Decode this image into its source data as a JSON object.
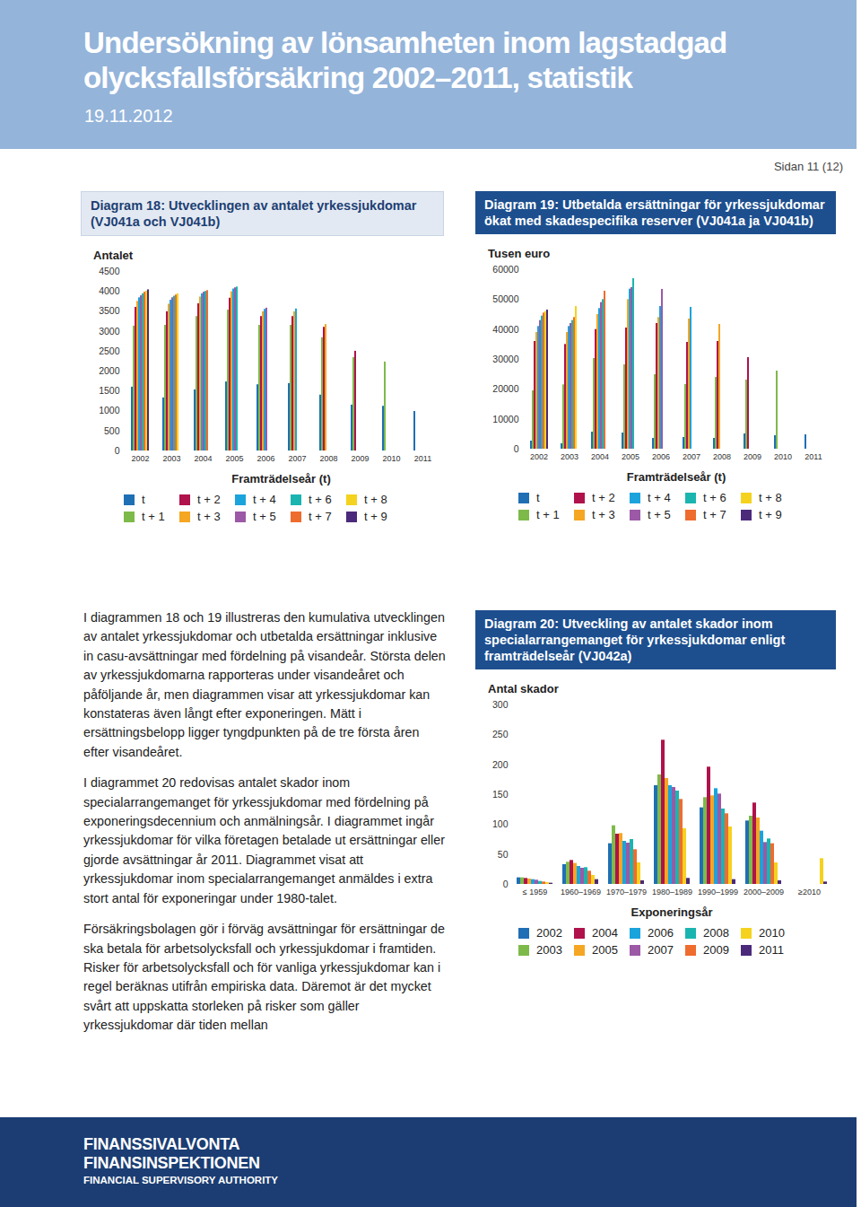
{
  "header": {
    "title": [
      "Undersökning av lönsamheten inom lagstadgad",
      "olycksfallsförsäkring 2002–2011, statistik"
    ],
    "date": "19.11.2012"
  },
  "page_number": "Sidan 11 (12)",
  "text": {
    "paragraphs": [
      "I diagrammen 18 och 19 illustreras den kumulativa utvecklingen av antalet yrkessjukdomar och utbetalda ersättningar inklusive in casu-avsättningar med fördelning på visandeår. Största delen av yrkessjukdomarna rapporteras under visandeåret och påföljande år, men diagrammen visar att yrkessjukdomar kan konstateras även långt efter exponeringen. Mätt i ersättningsbelopp ligger tyngdpunkten på de tre första åren efter visandeåret.",
      "I diagrammet 20 redovisas antalet skador inom specialarrangemanget för yrkessjukdomar med fördelning på exponeringsdecennium och anmälningsår. I diagrammet ingår yrkessjukdomar för vilka företagen betalade ut ersättningar eller gjorde avsättningar år 2011. Diagrammet visat att yrkessjukdomar inom specialarrangemanget anmäldes i extra stort antal för exponeringar under 1980-talet.",
      "Försäkringsbolagen gör i förväg avsättningar för ersättningar de ska betala för arbetsolycksfall och yrkessjukdomar i framtiden. Risker för arbetsolycksfall och för vanliga yrkessjukdomar kan i regel beräknas utifrån empiriska data. Däremot är det mycket svårt att uppskatta storleken på risker som gäller yrkessjukdomar där tiden mellan"
    ]
  },
  "footer": {
    "logo": [
      "FINANSSIVALVONTA",
      "FINANSINSPEKTIONEN",
      "FINANCIAL SUPERVISORY AUTHORITY"
    ]
  },
  "chart_data": [
    {
      "type": "bar",
      "title": "Diagram 18: Utvecklingen av antalet yrkessjukdomar (VJ041a och VJ041b)",
      "y_label": "Antalet",
      "x_label": "Framträdelseår (t)",
      "categories": [
        "2002",
        "2003",
        "2004",
        "2005",
        "2006",
        "2007",
        "2008",
        "2009",
        "2010",
        "2011"
      ],
      "series": [
        {
          "name": "t",
          "color": "#1f6fb5",
          "values": [
            1600,
            1330,
            1530,
            1730,
            1660,
            1690,
            1400,
            1150,
            1120,
            990
          ]
        },
        {
          "name": "t + 1",
          "color": "#7dba4a",
          "values": [
            3130,
            3150,
            3370,
            3530,
            3150,
            3150,
            2840,
            2340,
            2230,
            null
          ]
        },
        {
          "name": "t + 2",
          "color": "#b0124b",
          "values": [
            3600,
            3490,
            3690,
            3830,
            3370,
            3370,
            3100,
            2500,
            null,
            null
          ]
        },
        {
          "name": "t + 3",
          "color": "#f5a623",
          "values": [
            3750,
            3680,
            3860,
            3990,
            3490,
            3490,
            3170,
            null,
            null,
            null
          ]
        },
        {
          "name": "t + 4",
          "color": "#1ba3dc",
          "values": [
            3840,
            3780,
            3940,
            4060,
            3550,
            3560,
            null,
            null,
            null,
            null
          ]
        },
        {
          "name": "t + 5",
          "color": "#9b59a6",
          "values": [
            3890,
            3840,
            3980,
            4090,
            3580,
            null,
            null,
            null,
            null,
            null
          ]
        },
        {
          "name": "t + 6",
          "color": "#1bb5b0",
          "values": [
            3940,
            3880,
            4000,
            4110,
            null,
            null,
            null,
            null,
            null,
            null
          ]
        },
        {
          "name": "t + 7",
          "color": "#ef6c2f",
          "values": [
            3980,
            3910,
            4020,
            null,
            null,
            null,
            null,
            null,
            null,
            null
          ]
        },
        {
          "name": "t + 8",
          "color": "#f5d21e",
          "values": [
            4010,
            3940,
            null,
            null,
            null,
            null,
            null,
            null,
            null,
            null
          ]
        },
        {
          "name": "t + 9",
          "color": "#4b2a7b",
          "values": [
            4040,
            null,
            null,
            null,
            null,
            null,
            null,
            null,
            null,
            null
          ]
        }
      ],
      "ylim": [
        0,
        4500
      ],
      "yticks": [
        0,
        500,
        1000,
        1500,
        2000,
        2500,
        3000,
        3500,
        4000,
        4500
      ],
      "grid": false,
      "legend": "bottom"
    },
    {
      "type": "bar",
      "title": "Diagram 19: Utbetalda ersättningar för yrkessjukdomar ökat med skadespecifika reserver (VJ041a ja VJ041b)",
      "y_label": "Tusen euro",
      "x_label": "Framträdelseår (t)",
      "categories": [
        "2002",
        "2003",
        "2004",
        "2005",
        "2006",
        "2007",
        "2008",
        "2009",
        "2010",
        "2011"
      ],
      "series": [
        {
          "name": "t",
          "color": "#1f6fb5",
          "values": [
            2700,
            1800,
            5700,
            5400,
            3600,
            3900,
            3600,
            5100,
            4500,
            4800
          ]
        },
        {
          "name": "t + 1",
          "color": "#7dba4a",
          "values": [
            19500,
            21500,
            30300,
            28200,
            24900,
            21600,
            24000,
            23100,
            26100,
            null
          ]
        },
        {
          "name": "t + 2",
          "color": "#b0124b",
          "values": [
            36000,
            35000,
            40000,
            40500,
            42000,
            35700,
            36000,
            30600,
            null,
            null
          ]
        },
        {
          "name": "t + 3",
          "color": "#f5a623",
          "values": [
            39000,
            39000,
            45000,
            50000,
            44000,
            43500,
            41700,
            null,
            null,
            null
          ]
        },
        {
          "name": "t + 4",
          "color": "#1ba3dc",
          "values": [
            41000,
            41000,
            47000,
            53500,
            47700,
            47400,
            null,
            null,
            null,
            null
          ]
        },
        {
          "name": "t + 5",
          "color": "#9b59a6",
          "values": [
            43000,
            42000,
            49000,
            54000,
            53400,
            null,
            null,
            null,
            null,
            null
          ]
        },
        {
          "name": "t + 6",
          "color": "#1bb5b0",
          "values": [
            44500,
            43000,
            50000,
            57000,
            null,
            null,
            null,
            null,
            null,
            null
          ]
        },
        {
          "name": "t + 7",
          "color": "#ef6c2f",
          "values": [
            45500,
            44000,
            52800,
            null,
            null,
            null,
            null,
            null,
            null,
            null
          ]
        },
        {
          "name": "t + 8",
          "color": "#f5d21e",
          "values": [
            46000,
            47700,
            null,
            null,
            null,
            null,
            null,
            null,
            null,
            null
          ]
        },
        {
          "name": "t + 9",
          "color": "#4b2a7b",
          "values": [
            46500,
            null,
            null,
            null,
            null,
            null,
            null,
            null,
            null,
            null
          ]
        }
      ],
      "ylim": [
        0,
        60000
      ],
      "yticks": [
        0,
        10000,
        20000,
        30000,
        40000,
        50000,
        60000
      ],
      "grid": false,
      "legend": "bottom"
    },
    {
      "type": "bar",
      "title": "Diagram 20: Utveckling av antalet skador inom specialarrangemanget för yrkessjukdomar enligt framträdelseår (VJ042a)",
      "y_label": "Antal skador",
      "x_label": "Exponeringsår",
      "categories": [
        "≤ 1959",
        "1960–1969",
        "1970–1979",
        "1980–1989",
        "1990–1999",
        "2000–2009",
        "≥2010"
      ],
      "series": [
        {
          "name": "2002",
          "color": "#1f6fb5",
          "values": [
            11,
            33,
            68,
            165,
            128,
            106,
            null
          ]
        },
        {
          "name": "2003",
          "color": "#7dba4a",
          "values": [
            11,
            37,
            98,
            183,
            145,
            114,
            null
          ]
        },
        {
          "name": "2004",
          "color": "#b0124b",
          "values": [
            10,
            40,
            84,
            241,
            196,
            136,
            null
          ]
        },
        {
          "name": "2005",
          "color": "#f5a623",
          "values": [
            9,
            35,
            85,
            177,
            148,
            111,
            null
          ]
        },
        {
          "name": "2006",
          "color": "#1ba3dc",
          "values": [
            8,
            30,
            72,
            165,
            160,
            89,
            null
          ]
        },
        {
          "name": "2007",
          "color": "#9b59a6",
          "values": [
            7,
            27,
            69,
            162,
            151,
            70,
            null
          ]
        },
        {
          "name": "2008",
          "color": "#1bb5b0",
          "values": [
            5,
            28,
            75,
            156,
            126,
            76,
            null
          ]
        },
        {
          "name": "2009",
          "color": "#ef6c2f",
          "values": [
            4,
            22,
            58,
            142,
            118,
            68,
            null
          ]
        },
        {
          "name": "2010",
          "color": "#f5d21e",
          "values": [
            3,
            15,
            36,
            93,
            96,
            36,
            43
          ]
        },
        {
          "name": "2011",
          "color": "#4b2a7b",
          "values": [
            2,
            8,
            6,
            10,
            8,
            6,
            4
          ]
        }
      ],
      "ylim": [
        0,
        300
      ],
      "yticks": [
        0,
        50,
        100,
        150,
        200,
        250,
        300
      ],
      "grid": false,
      "legend": "bottom"
    }
  ]
}
